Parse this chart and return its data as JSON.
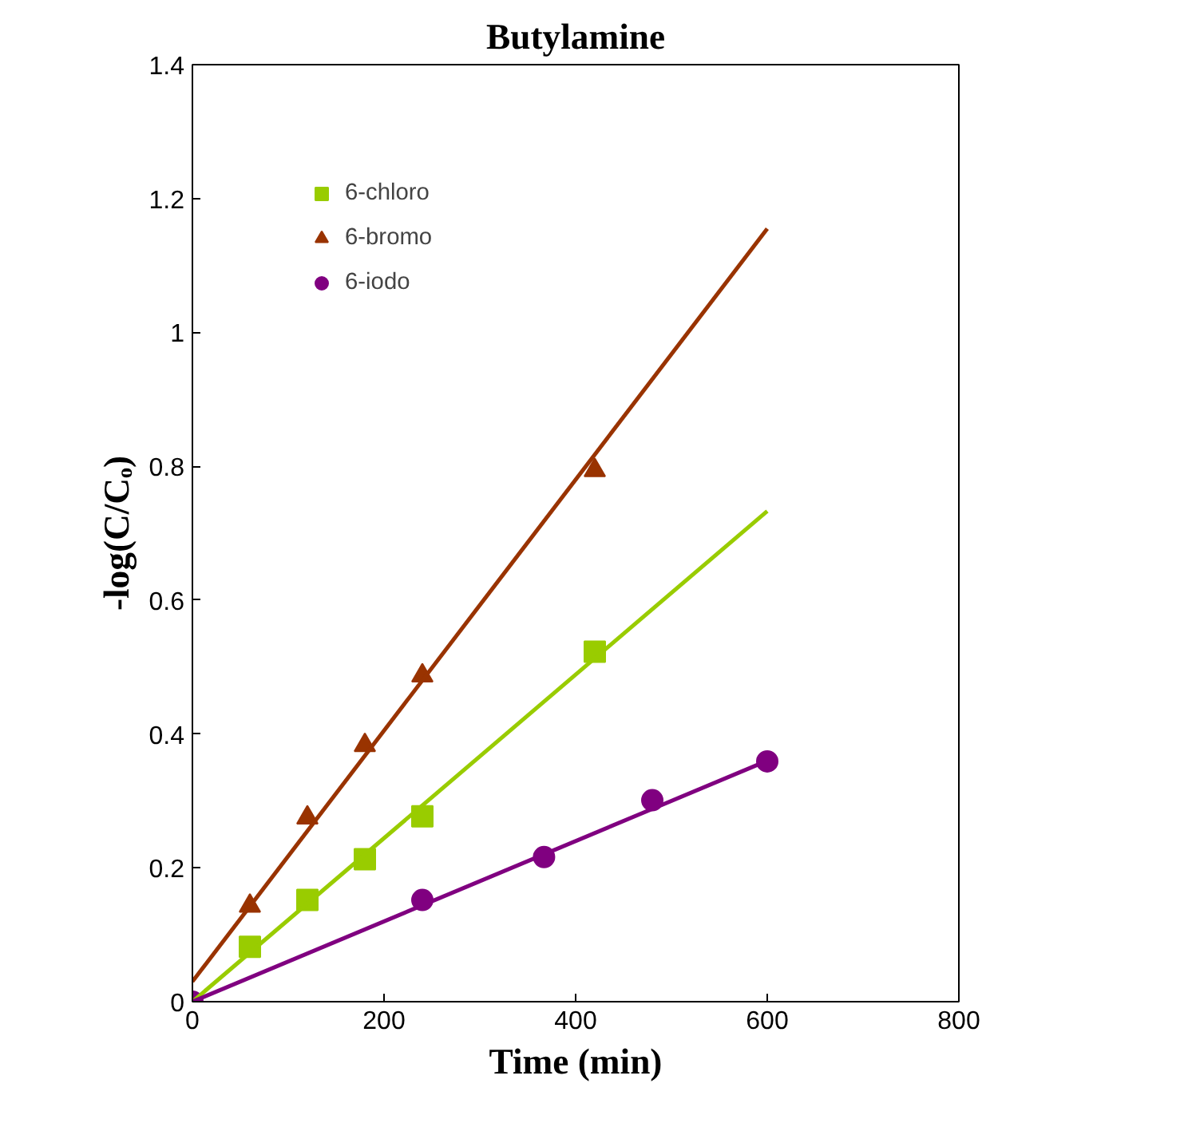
{
  "chart_data": {
    "type": "scatter",
    "title": "Butylamine",
    "xlabel": "Time (min)",
    "ylabel": "-log(C/Cₒ)",
    "xlim": [
      0,
      800
    ],
    "xticks": [
      0,
      200,
      400,
      600,
      800
    ],
    "ylim": [
      0,
      1.4
    ],
    "yticks": [
      0,
      0.2,
      0.4,
      0.6,
      0.8,
      1,
      1.2,
      1.4
    ],
    "grid": false,
    "legend": "top left",
    "series": [
      {
        "name": "6-chloro",
        "color": "#99cc00",
        "marker": "square",
        "x": [
          60,
          120,
          180,
          240,
          420
        ],
        "values": [
          0.082,
          0.152,
          0.213,
          0.277,
          0.523
        ]
      },
      {
        "name": "6-bromo",
        "color": "#993300",
        "marker": "triangle",
        "x": [
          60,
          120,
          180,
          240,
          420
        ],
        "values": [
          0.143,
          0.275,
          0.383,
          0.487,
          0.794
        ]
      },
      {
        "name": "6-iodo",
        "color": "#800080",
        "marker": "circle",
        "x": [
          0,
          240,
          367,
          480,
          600
        ],
        "values": [
          0,
          0.152,
          0.216,
          0.301,
          0.359
        ]
      },
      {
        "type": "line",
        "color": "#99cc00",
        "x": [
          0,
          600
        ],
        "values": [
          0,
          0.733
        ]
      },
      {
        "type": "line",
        "color": "#993300",
        "x": [
          0,
          600
        ],
        "values": [
          0.03,
          1.155
        ]
      },
      {
        "type": "line",
        "color": "#800080",
        "x": [
          0,
          600
        ],
        "values": [
          0,
          0.36
        ]
      }
    ]
  }
}
